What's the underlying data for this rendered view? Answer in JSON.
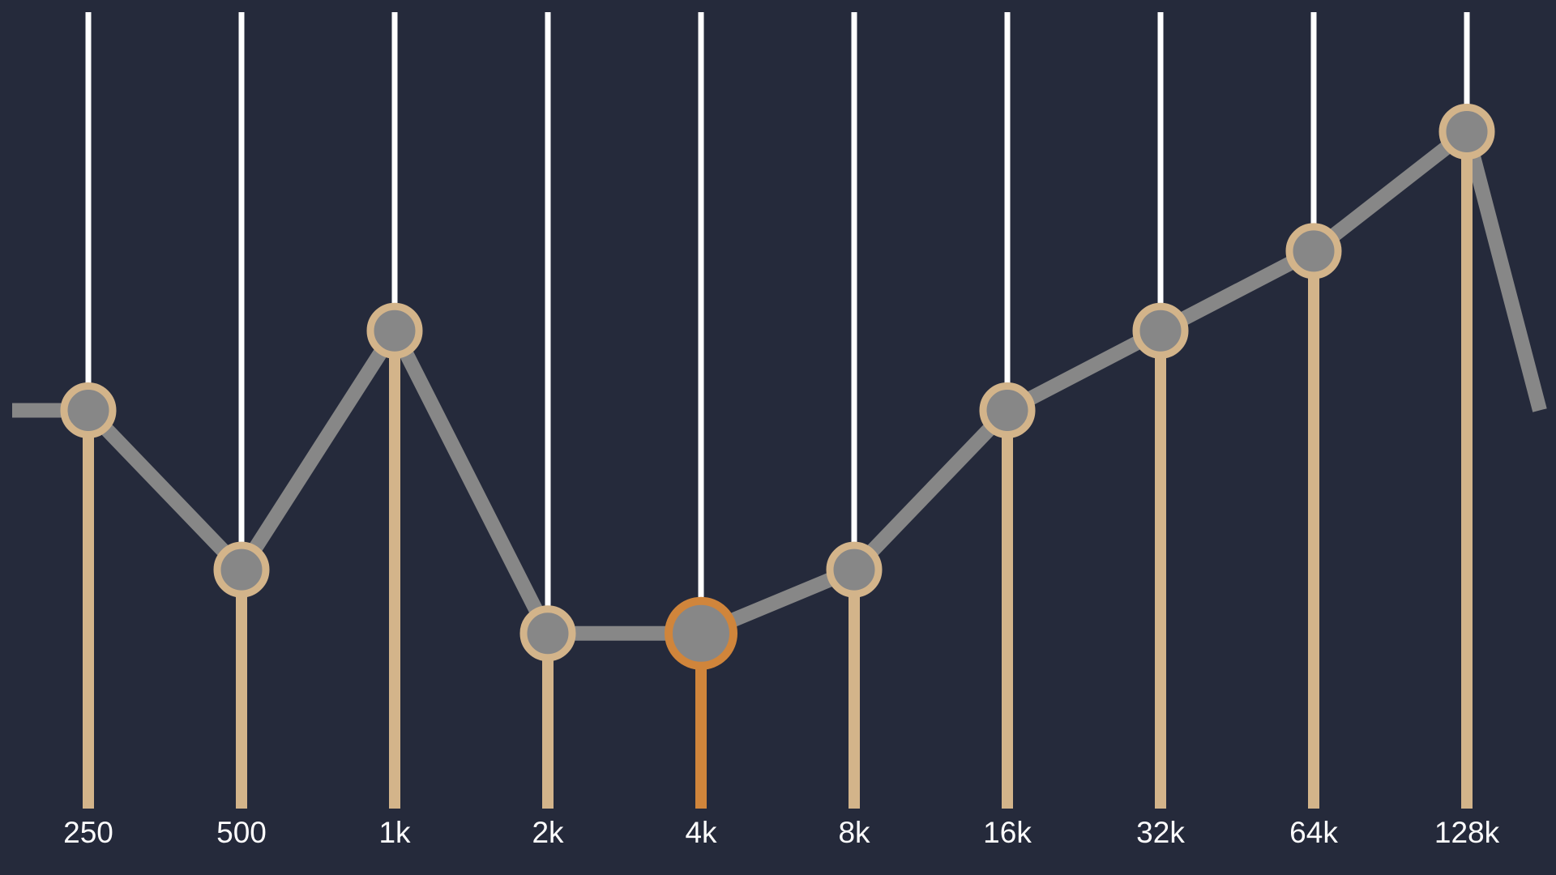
{
  "equalizer": {
    "colors": {
      "background": "#252a3b",
      "track_top": "#ffffff",
      "track_fill": "#d3b48a",
      "track_fill_active": "#d0853b",
      "knob_fill": "#878787",
      "curve": "#878787"
    },
    "bands": [
      {
        "label": "250",
        "level": 0.5,
        "active": false
      },
      {
        "label": "500",
        "level": 0.3,
        "active": false
      },
      {
        "label": "1k",
        "level": 0.6,
        "active": false
      },
      {
        "label": "2k",
        "level": 0.22,
        "active": false
      },
      {
        "label": "4k",
        "level": 0.22,
        "active": true
      },
      {
        "label": "8k",
        "level": 0.3,
        "active": false
      },
      {
        "label": "16k",
        "level": 0.5,
        "active": false
      },
      {
        "label": "32k",
        "level": 0.6,
        "active": false
      },
      {
        "label": "64k",
        "level": 0.7,
        "active": false
      },
      {
        "label": "128k",
        "level": 0.85,
        "active": false
      }
    ],
    "curve_start_level": 0.5,
    "curve_end_level": 0.5
  }
}
